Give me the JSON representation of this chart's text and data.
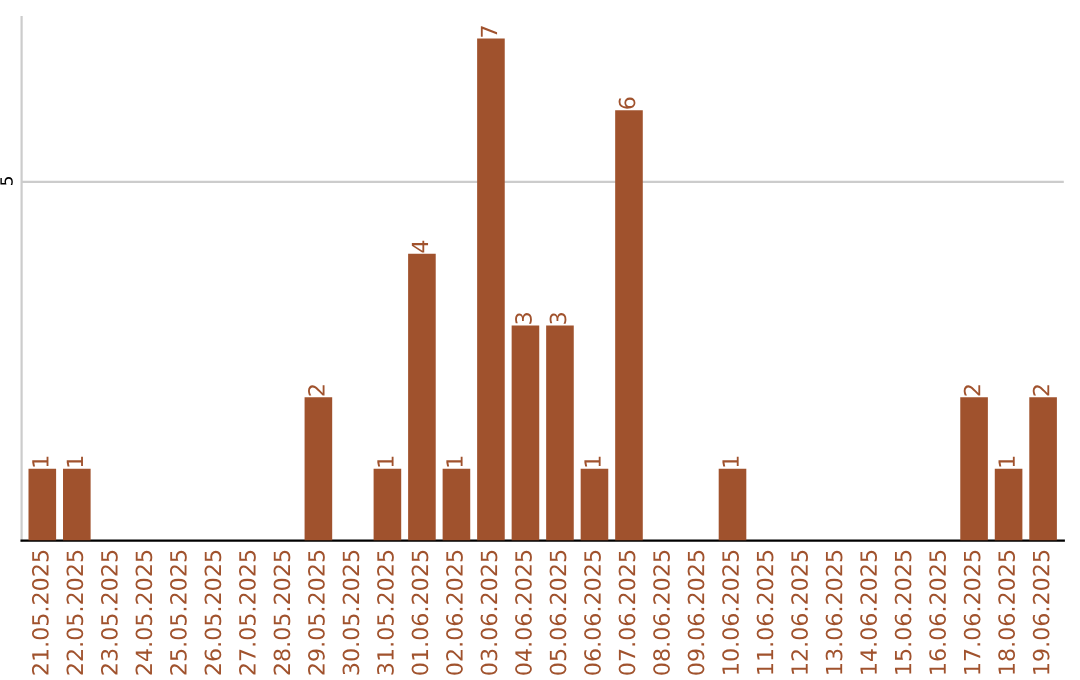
{
  "chart_data": {
    "type": "bar",
    "categories": [
      "21.05.2025",
      "22.05.2025",
      "23.05.2025",
      "24.05.2025",
      "25.05.2025",
      "26.05.2025",
      "27.05.2025",
      "28.05.2025",
      "29.05.2025",
      "30.05.2025",
      "31.05.2025",
      "01.06.2025",
      "02.06.2025",
      "03.06.2025",
      "04.06.2025",
      "05.06.2025",
      "06.06.2025",
      "07.06.2025",
      "08.06.2025",
      "09.06.2025",
      "10.06.2025",
      "11.06.2025",
      "12.06.2025",
      "13.06.2025",
      "14.06.2025",
      "15.06.2025",
      "16.06.2025",
      "17.06.2025",
      "18.06.2025",
      "19.06.2025"
    ],
    "values": [
      1,
      1,
      0,
      0,
      0,
      0,
      0,
      0,
      2,
      0,
      1,
      4,
      1,
      7,
      3,
      3,
      1,
      6,
      0,
      0,
      1,
      0,
      0,
      0,
      0,
      0,
      0,
      2,
      1,
      2
    ],
    "value_labels": [
      "1",
      "1",
      null,
      null,
      null,
      null,
      null,
      null,
      "2",
      null,
      "1",
      "4",
      "1",
      "7",
      "3",
      "3",
      "1",
      "6",
      null,
      null,
      "1",
      null,
      null,
      null,
      null,
      null,
      null,
      "2",
      "1",
      "2"
    ],
    "color": "#a0522d",
    "ylim": [
      0,
      7.3
    ],
    "yticks": [
      5
    ],
    "grid": "y",
    "legend": false
  }
}
